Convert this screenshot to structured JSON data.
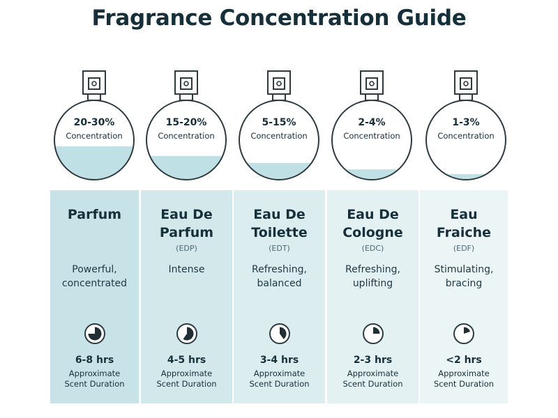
{
  "title": "Fragrance Concentration Guide",
  "concentration_label": "Concentration",
  "approx_line1": "Approximate",
  "approx_line2": "Scent Duration",
  "colors": {
    "text": "#16303b",
    "liquid": "#bfe0e4",
    "bottle_stroke": "#2b3b41"
  },
  "types": [
    {
      "concentration": "20-30%",
      "fill_level": 0.42,
      "name_lines": [
        "Parfum"
      ],
      "abbr": "",
      "desc_lines": [
        "Powerful,",
        "concentrated"
      ],
      "duration": "6-8 hrs",
      "timer_fraction": 0.75,
      "bg": "#c8e3e7"
    },
    {
      "concentration": "15-20%",
      "fill_level": 0.3,
      "name_lines": [
        "Eau De",
        "Parfum"
      ],
      "abbr": "(EDP)",
      "desc_lines": [
        "Intense"
      ],
      "duration": "4-5 hrs",
      "timer_fraction": 0.6,
      "bg": "#d2e8eb"
    },
    {
      "concentration": "5-15%",
      "fill_level": 0.21,
      "name_lines": [
        "Eau De",
        "Toilette"
      ],
      "abbr": "(EDT)",
      "desc_lines": [
        "Refreshing,",
        "balanced"
      ],
      "duration": "3-4 hrs",
      "timer_fraction": 0.4,
      "bg": "#dbedef"
    },
    {
      "concentration": "2-4%",
      "fill_level": 0.13,
      "name_lines": [
        "Eau De",
        "Cologne"
      ],
      "abbr": "(EDC)",
      "desc_lines": [
        "Refreshing,",
        "uplifting"
      ],
      "duration": "2-3 hrs",
      "timer_fraction": 0.25,
      "bg": "#e3f1f3"
    },
    {
      "concentration": "1-3%",
      "fill_level": 0.07,
      "name_lines": [
        "Eau",
        "Fraiche"
      ],
      "abbr": "(EDF)",
      "desc_lines": [
        "Stimulating,",
        "bracing"
      ],
      "duration": "<2 hrs",
      "timer_fraction": 0.2,
      "bg": "#ebf5f6"
    }
  ]
}
